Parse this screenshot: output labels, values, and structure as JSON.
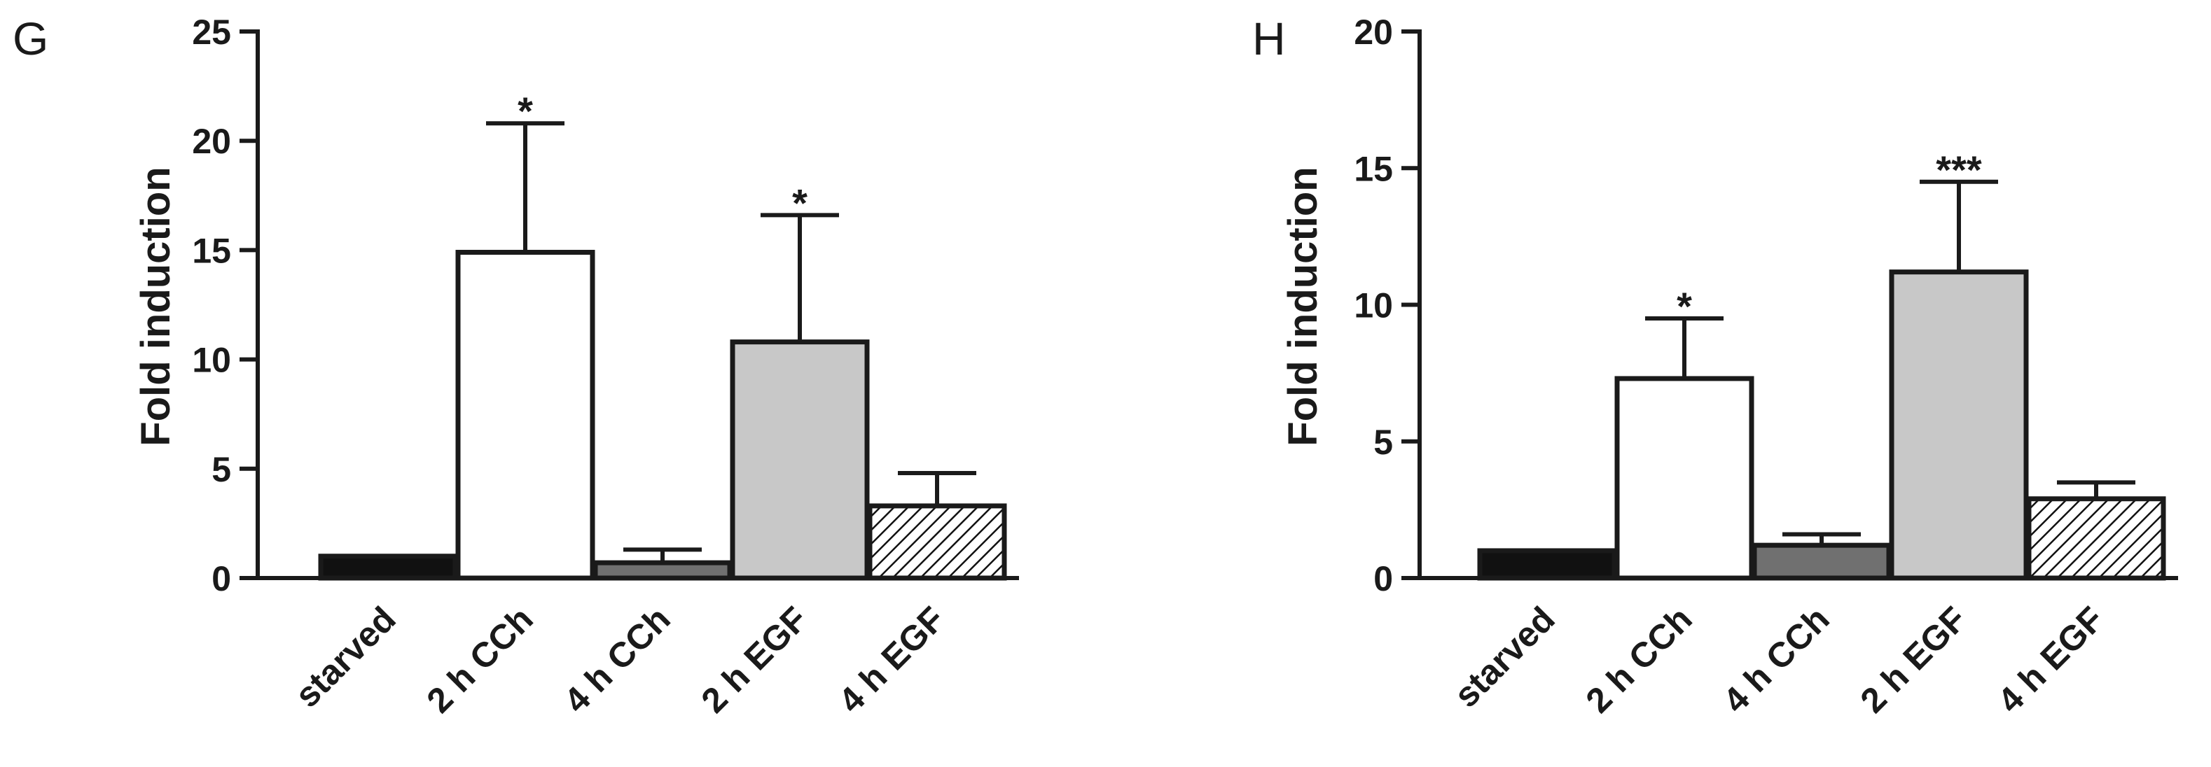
{
  "chart_data": [
    {
      "type": "bar",
      "panel_label": "G",
      "ylabel": "Fold induction",
      "ylim": [
        0,
        25
      ],
      "yticks": [
        0,
        5,
        10,
        15,
        20,
        25
      ],
      "categories": [
        "starved",
        "2 h CCh",
        "4 h CCh",
        "2 h EGF",
        "4 h EGF"
      ],
      "values": [
        1.0,
        14.9,
        0.7,
        10.8,
        3.3
      ],
      "errors": [
        0.0,
        5.9,
        0.6,
        5.8,
        1.5
      ],
      "significance": [
        "",
        "*",
        "",
        "*",
        ""
      ],
      "fills": [
        "#111111",
        "#ffffff",
        "#707070",
        "#c8c8c8",
        "hatch"
      ]
    },
    {
      "type": "bar",
      "panel_label": "H",
      "ylabel": "Fold induction",
      "ylim": [
        0,
        20
      ],
      "yticks": [
        0,
        5,
        10,
        15,
        20
      ],
      "categories": [
        "starved",
        "2 h CCh",
        "4 h CCh",
        "2 h EGF",
        "4 h EGF"
      ],
      "values": [
        1.0,
        7.3,
        1.2,
        11.2,
        2.9
      ],
      "errors": [
        0.0,
        2.2,
        0.4,
        3.3,
        0.6
      ],
      "significance": [
        "",
        "*",
        "",
        "***",
        ""
      ],
      "fills": [
        "#111111",
        "#ffffff",
        "#707070",
        "#c8c8c8",
        "hatch"
      ]
    }
  ]
}
